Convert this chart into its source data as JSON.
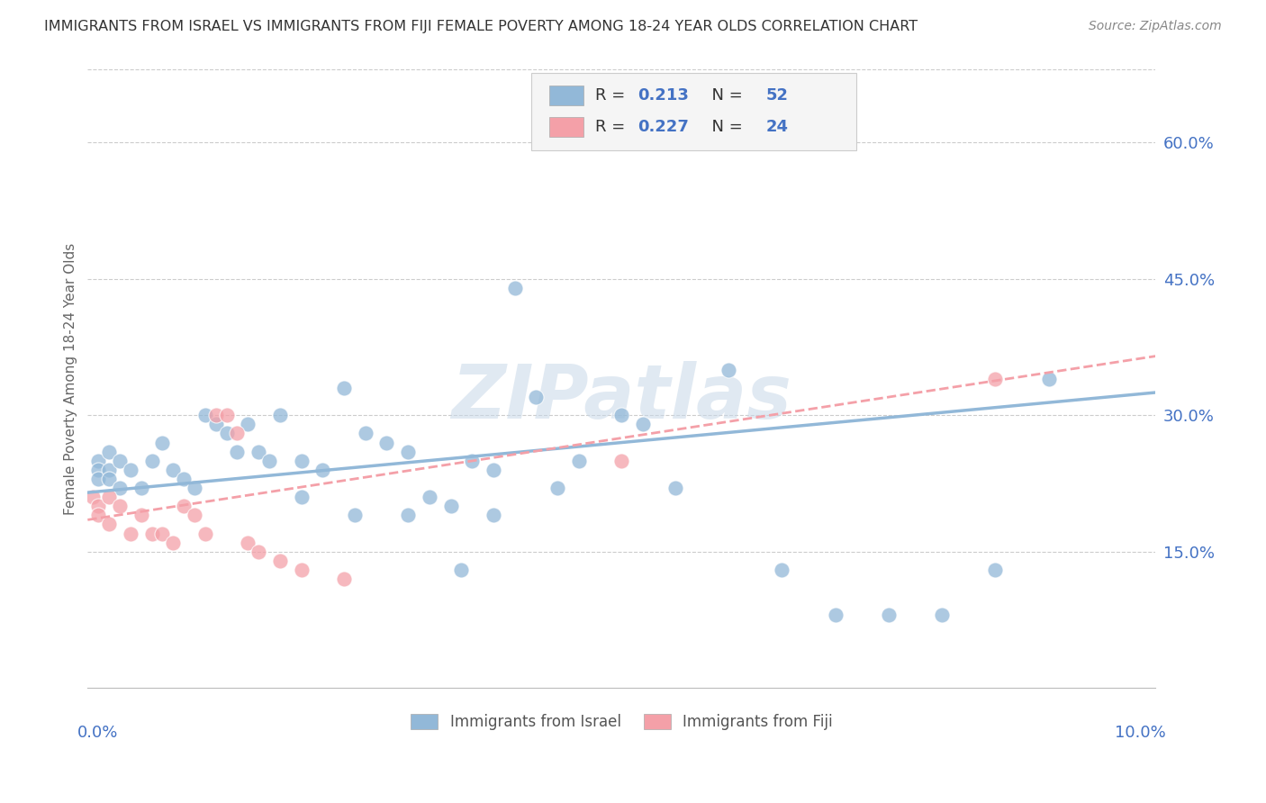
{
  "title": "IMMIGRANTS FROM ISRAEL VS IMMIGRANTS FROM FIJI FEMALE POVERTY AMONG 18-24 YEAR OLDS CORRELATION CHART",
  "source": "Source: ZipAtlas.com",
  "ylabel": "Female Poverty Among 18-24 Year Olds",
  "y_ticks_right": [
    "60.0%",
    "45.0%",
    "30.0%",
    "15.0%"
  ],
  "y_tick_vals": [
    0.6,
    0.45,
    0.3,
    0.15
  ],
  "xlim": [
    0.0,
    0.1
  ],
  "ylim": [
    0.0,
    0.68
  ],
  "israel_color": "#92b8d8",
  "fiji_color": "#f4a0a8",
  "israel_R": "0.213",
  "israel_N": "52",
  "fiji_R": "0.227",
  "fiji_N": "24",
  "israel_scatter_x": [
    0.001,
    0.001,
    0.001,
    0.002,
    0.002,
    0.002,
    0.003,
    0.003,
    0.004,
    0.005,
    0.006,
    0.007,
    0.008,
    0.009,
    0.01,
    0.011,
    0.012,
    0.013,
    0.014,
    0.015,
    0.016,
    0.017,
    0.018,
    0.02,
    0.022,
    0.024,
    0.026,
    0.028,
    0.03,
    0.032,
    0.034,
    0.036,
    0.038,
    0.04,
    0.042,
    0.044,
    0.046,
    0.05,
    0.052,
    0.055,
    0.06,
    0.065,
    0.07,
    0.075,
    0.08,
    0.085,
    0.09,
    0.038,
    0.02,
    0.025,
    0.03,
    0.035
  ],
  "israel_scatter_y": [
    0.25,
    0.24,
    0.23,
    0.26,
    0.24,
    0.23,
    0.25,
    0.22,
    0.24,
    0.22,
    0.25,
    0.27,
    0.24,
    0.23,
    0.22,
    0.3,
    0.29,
    0.28,
    0.26,
    0.29,
    0.26,
    0.25,
    0.3,
    0.25,
    0.24,
    0.33,
    0.28,
    0.27,
    0.26,
    0.21,
    0.2,
    0.25,
    0.24,
    0.44,
    0.32,
    0.22,
    0.25,
    0.3,
    0.29,
    0.22,
    0.35,
    0.13,
    0.08,
    0.08,
    0.08,
    0.13,
    0.34,
    0.19,
    0.21,
    0.19,
    0.19,
    0.13
  ],
  "fiji_scatter_x": [
    0.0005,
    0.001,
    0.001,
    0.002,
    0.002,
    0.003,
    0.004,
    0.005,
    0.006,
    0.007,
    0.008,
    0.009,
    0.01,
    0.011,
    0.012,
    0.013,
    0.014,
    0.015,
    0.016,
    0.018,
    0.02,
    0.024,
    0.05,
    0.085
  ],
  "fiji_scatter_y": [
    0.21,
    0.2,
    0.19,
    0.21,
    0.18,
    0.2,
    0.17,
    0.19,
    0.17,
    0.17,
    0.16,
    0.2,
    0.19,
    0.17,
    0.3,
    0.3,
    0.28,
    0.16,
    0.15,
    0.14,
    0.13,
    0.12,
    0.25,
    0.34
  ],
  "israel_line_x0": 0.0,
  "israel_line_x1": 0.1,
  "israel_line_y0": 0.215,
  "israel_line_y1": 0.325,
  "fiji_line_x0": 0.0,
  "fiji_line_x1": 0.1,
  "fiji_line_y0": 0.185,
  "fiji_line_y1": 0.365,
  "watermark": "ZIPatlas",
  "background_color": "#ffffff",
  "grid_color": "#cccccc",
  "title_color": "#333333",
  "axis_label_color": "#4472c4"
}
